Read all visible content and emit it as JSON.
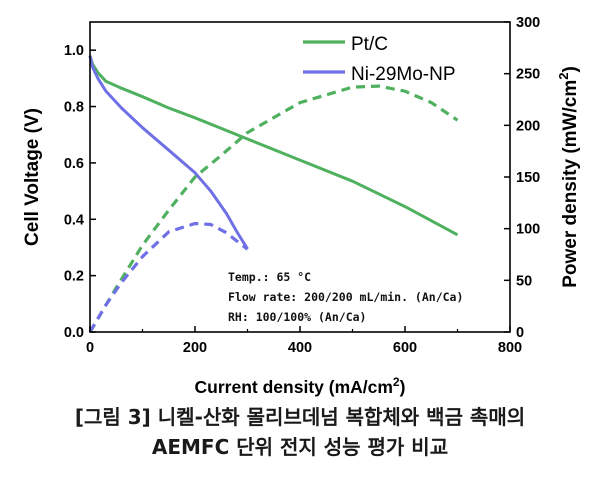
{
  "chart_data": {
    "type": "line",
    "x_axis": {
      "label": "Current density (mA/cm",
      "label_sup": "2",
      "label_tail": ")",
      "range": [
        0,
        800
      ],
      "ticks": [
        0,
        200,
        400,
        600,
        800
      ]
    },
    "y_left": {
      "label": "Cell Voltage (V)",
      "range": [
        0.0,
        1.1
      ],
      "ticks": [
        0.0,
        0.2,
        0.4,
        0.6,
        0.8,
        1.0
      ],
      "tick_labels": [
        "0.0",
        "0.2",
        "0.4",
        "0.6",
        "0.8",
        "1.0"
      ]
    },
    "y_right": {
      "label": "Power density (mW/cm",
      "label_sup": "2",
      "label_tail": ")",
      "range": [
        0,
        300
      ],
      "ticks": [
        0,
        50,
        100,
        150,
        200,
        250,
        300
      ]
    },
    "legend": {
      "position": "top-right",
      "entries": [
        "Pt/C",
        "Ni-29Mo-NP"
      ]
    },
    "annotations": [
      "Temp.: 65 °C",
      "Flow rate: 200/200 mL/min. (An/Ca)",
      "RH: 100/100% (An/Ca)"
    ],
    "series": [
      {
        "name": "Pt/C",
        "kind": "voltage",
        "axis": "left",
        "color": "#4fb15f",
        "dash": false,
        "x": [
          0,
          5,
          15,
          30,
          60,
          100,
          150,
          200,
          300,
          400,
          500,
          600,
          700
        ],
        "y": [
          0.98,
          0.95,
          0.92,
          0.89,
          0.865,
          0.835,
          0.795,
          0.76,
          0.685,
          0.61,
          0.535,
          0.445,
          0.345
        ]
      },
      {
        "name": "Ni-29Mo-NP",
        "kind": "voltage",
        "axis": "left",
        "color": "#7070e6",
        "dash": false,
        "x": [
          0,
          5,
          15,
          30,
          60,
          100,
          150,
          200,
          230,
          260,
          280,
          300
        ],
        "y": [
          0.98,
          0.94,
          0.9,
          0.855,
          0.795,
          0.725,
          0.645,
          0.565,
          0.5,
          0.42,
          0.355,
          0.295
        ]
      },
      {
        "name": "Pt/C",
        "kind": "power",
        "axis": "right",
        "color": "#4fb15f",
        "dash": true,
        "x": [
          0,
          50,
          100,
          150,
          200,
          250,
          300,
          400,
          500,
          550,
          600,
          650,
          700
        ],
        "y": [
          0,
          43,
          84,
          118,
          150,
          171,
          193,
          222,
          237,
          238,
          233,
          222,
          205
        ]
      },
      {
        "name": "Ni-29Mo-NP",
        "kind": "power",
        "axis": "right",
        "color": "#7070e6",
        "dash": true,
        "x": [
          0,
          30,
          60,
          100,
          150,
          200,
          230,
          260,
          280,
          300
        ],
        "y": [
          0,
          26,
          48,
          73,
          97,
          105,
          104,
          96,
          88,
          80
        ]
      }
    ]
  },
  "caption": {
    "line1": "[그림 3] 니켈-산화 몰리브데넘 복합체와 백금 촉매의",
    "line2": "AEMFC 단위 전지 성능 평가 비교"
  }
}
